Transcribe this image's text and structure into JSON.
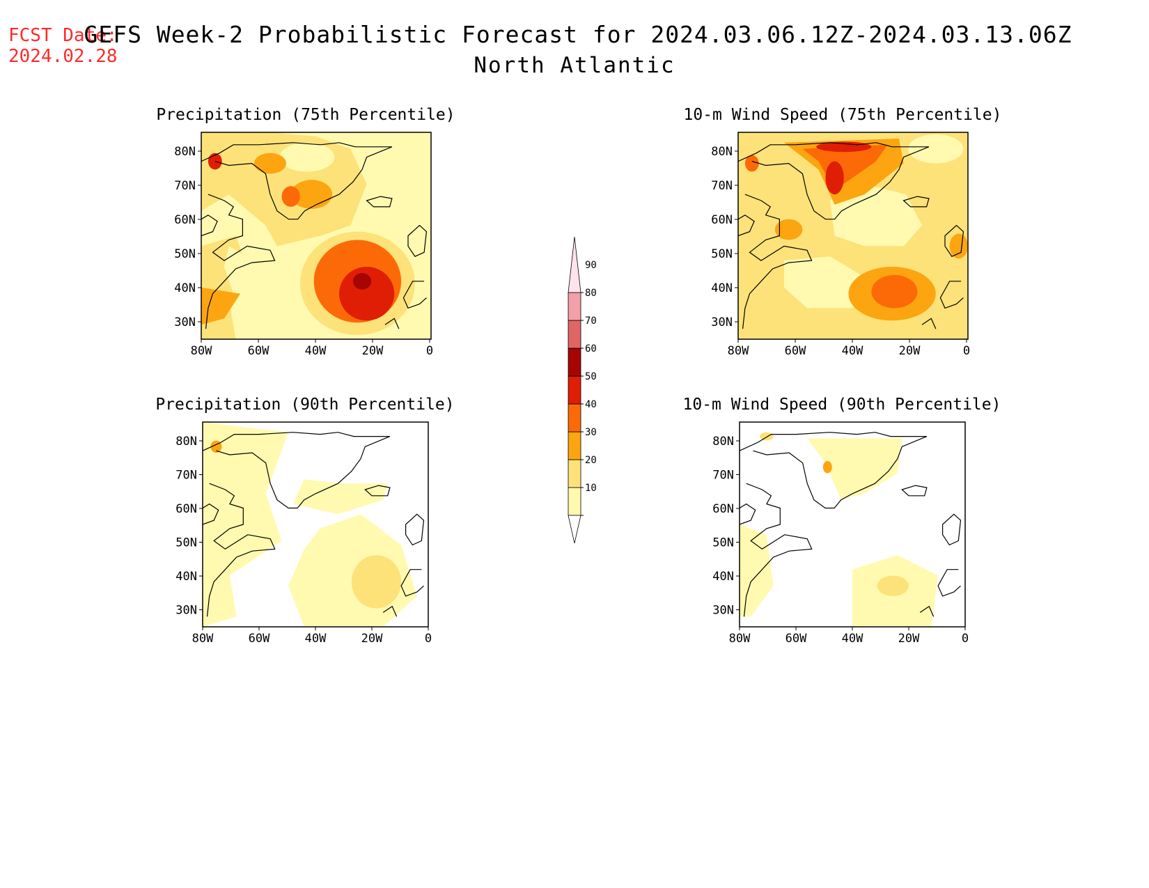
{
  "header": {
    "fcst_label": "FCST Date:",
    "fcst_date": "2024.02.28",
    "title": "GEFS Week-2 Probabilistic Forecast for 2024.03.06.12Z-2024.03.13.06Z",
    "subtitle": "North Atlantic"
  },
  "panels": [
    {
      "title": "Precipitation (75th Percentile)"
    },
    {
      "title": "10-m Wind Speed (75th Percentile)"
    },
    {
      "title": "Precipitation (90th Percentile)"
    },
    {
      "title": "10-m Wind Speed (90th Percentile)"
    }
  ],
  "axes": {
    "lat_labels": [
      "80N",
      "70N",
      "60N",
      "50N",
      "40N",
      "30N"
    ],
    "lon_labels": [
      "80W",
      "60W",
      "40W",
      "20W",
      "0"
    ]
  },
  "colorbar": {
    "labels": [
      "10",
      "20",
      "30",
      "40",
      "50",
      "60",
      "70",
      "80",
      "90"
    ],
    "colors": [
      "#fffab0",
      "#fde27a",
      "#fca510",
      "#fc6a08",
      "#e01e06",
      "#a50604",
      "#e06666",
      "#f3a0a8",
      "#fde4ea"
    ]
  }
}
